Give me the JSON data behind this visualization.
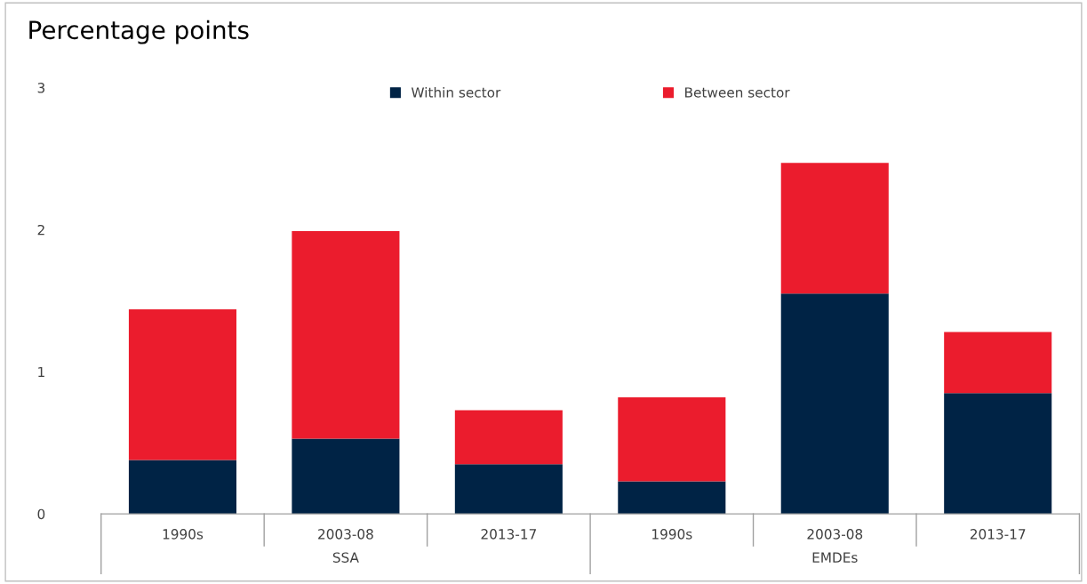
{
  "chart_data": {
    "type": "bar",
    "title": "Percentage points",
    "stacked": true,
    "categories": [
      "1990s",
      "2003-08",
      "2013-17",
      "1990s",
      "2003-08",
      "2013-17"
    ],
    "series": [
      {
        "name": "Within sector",
        "color": "#002345",
        "values": [
          0.38,
          0.53,
          0.35,
          0.23,
          1.55,
          0.85
        ]
      },
      {
        "name": "Between sector",
        "color": "#eb1c2d",
        "values": [
          1.06,
          1.46,
          0.38,
          0.59,
          0.92,
          0.43
        ]
      }
    ],
    "annotations": [
      "SSA",
      "EMDEs"
    ],
    "ylim": [
      0,
      3
    ],
    "yticks": [
      0,
      1,
      2,
      3
    ],
    "grid": false,
    "legend": "top"
  }
}
